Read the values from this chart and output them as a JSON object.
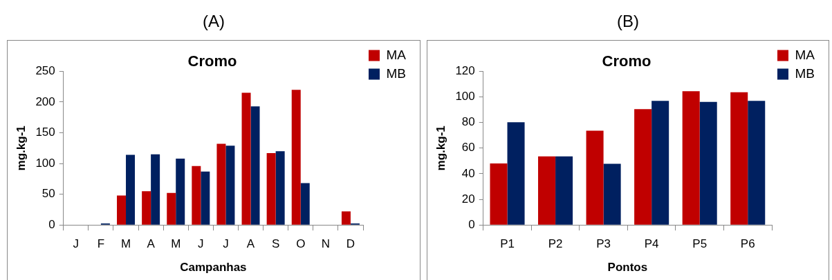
{
  "chart_data": [
    {
      "type": "bar",
      "title": "Cromo",
      "xlabel": "Campanhas",
      "ylabel": "mg.kg-1",
      "annotations": [
        "(A)"
      ],
      "categories": [
        "J",
        "F",
        "M",
        "A",
        "M",
        "J",
        "J",
        "A",
        "S",
        "O",
        "N",
        "D"
      ],
      "series": [
        {
          "name": "MA",
          "color": "#c00000",
          "values": [
            0,
            0,
            48,
            55,
            52,
            96,
            132,
            215,
            117,
            220,
            0,
            22
          ]
        },
        {
          "name": "MB",
          "color": "#002060",
          "values": [
            0,
            2.5,
            114,
            115,
            108,
            87,
            129,
            193,
            120,
            68,
            0,
            2.5
          ]
        }
      ],
      "ylim": [
        0,
        250
      ],
      "yticks": [
        0,
        50,
        100,
        150,
        200,
        250
      ],
      "grid": false,
      "legend": "top right"
    },
    {
      "type": "bar",
      "title": "Cromo",
      "xlabel": "Pontos",
      "ylabel": "mg.kg-1",
      "annotations": [
        "(B)"
      ],
      "categories": [
        "P1",
        "P2",
        "P3",
        "P4",
        "P5",
        "P6"
      ],
      "series": [
        {
          "name": "MA",
          "color": "#c00000",
          "values": [
            48,
            53.6,
            73.6,
            90.5,
            104.5,
            103.7
          ]
        },
        {
          "name": "MB",
          "color": "#002060",
          "values": [
            80.2,
            53.6,
            47.8,
            96.9,
            96.1,
            96.9
          ]
        }
      ],
      "ylim": [
        0,
        120
      ],
      "yticks": [
        0,
        20,
        40,
        60,
        80,
        100,
        120
      ],
      "grid": false,
      "legend": "top right"
    }
  ]
}
